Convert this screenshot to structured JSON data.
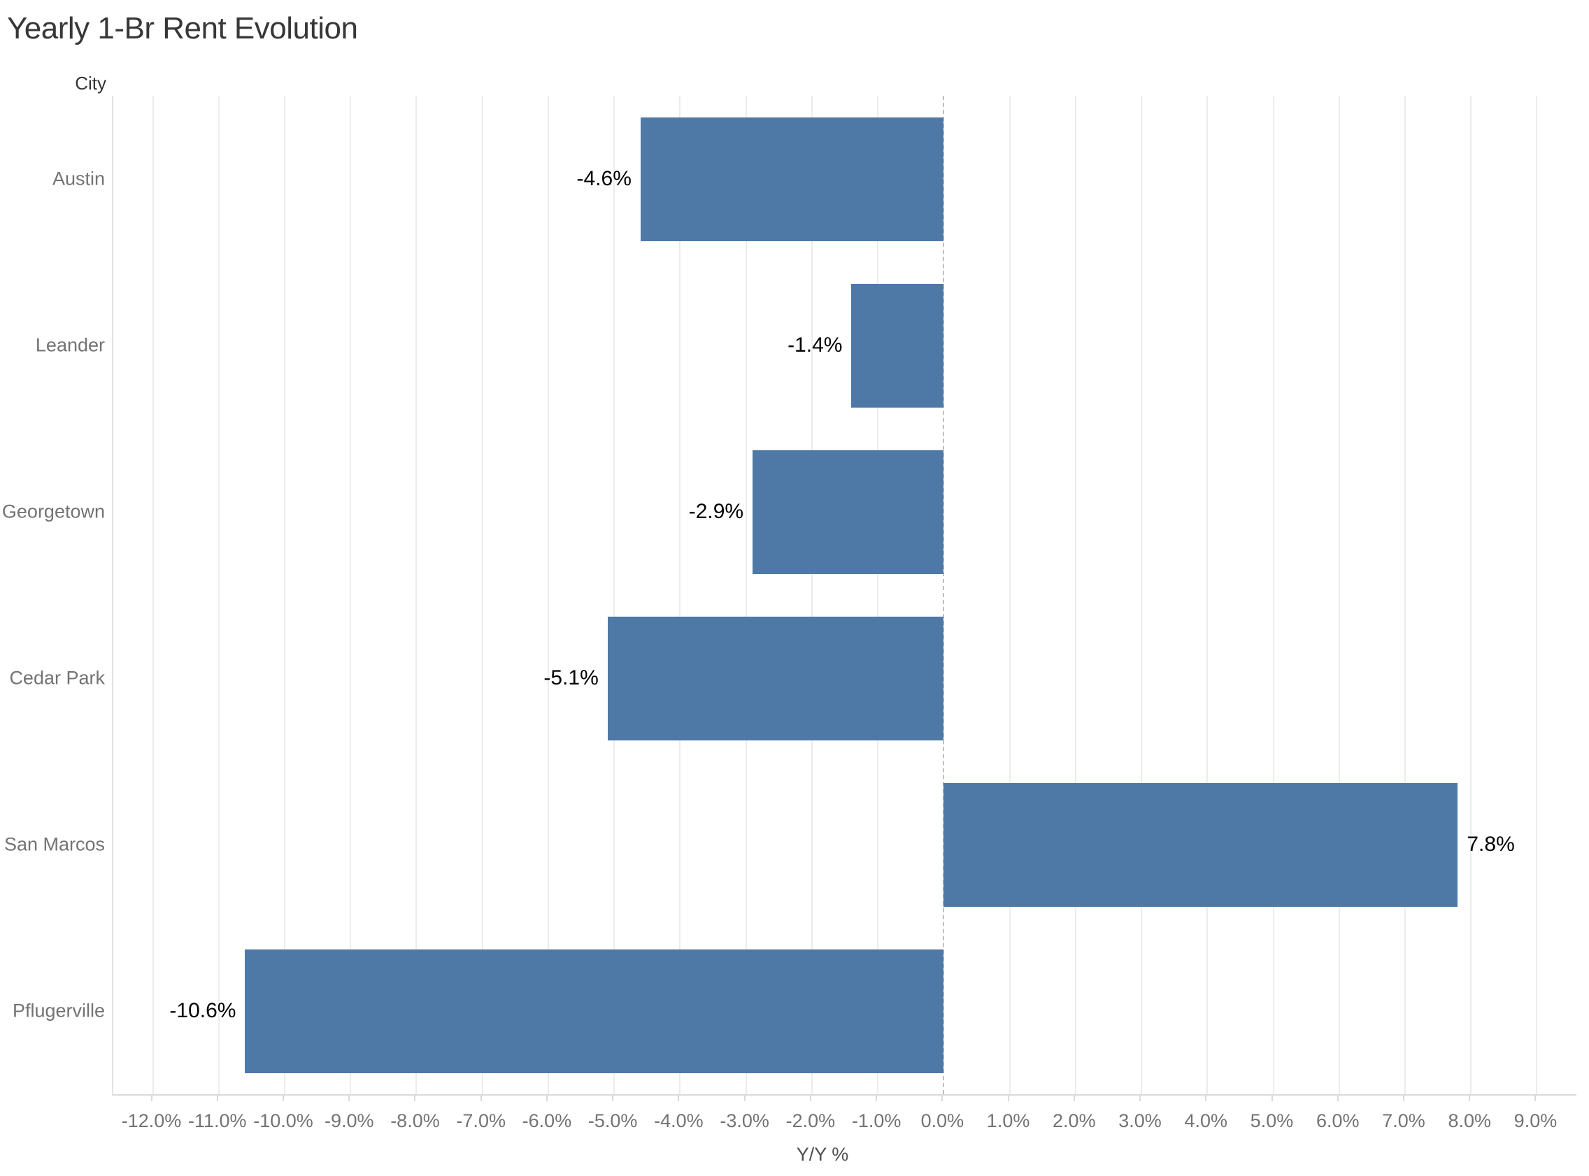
{
  "page": {
    "background": "#ffffff"
  },
  "chart_data": {
    "type": "bar",
    "orientation": "horizontal",
    "title": "Yearly 1-Br Rent Evolution",
    "row_field_label": "City",
    "xlabel": "Y/Y %",
    "categories": [
      "Austin",
      "Leander",
      "Georgetown",
      "Cedar Park",
      "San Marcos",
      "Pflugerville"
    ],
    "values": [
      -4.6,
      -1.4,
      -2.9,
      -5.1,
      7.8,
      -10.6
    ],
    "bar_labels": [
      "-4.6%",
      "-1.4%",
      "-2.9%",
      "-5.1%",
      "7.8%",
      "-10.6%"
    ],
    "bar_color": "#4e79a7",
    "xlim": [
      -12.6,
      9.6
    ],
    "x_tick_values": [
      -12,
      -11,
      -10,
      -9,
      -8,
      -7,
      -6,
      -5,
      -4,
      -3,
      -2,
      -1,
      0,
      1,
      2,
      3,
      4,
      5,
      6,
      7,
      8,
      9
    ],
    "x_tick_labels": [
      "-12.0%",
      "-11.0%",
      "-10.0%",
      "-9.0%",
      "-8.0%",
      "-7.0%",
      "-6.0%",
      "-5.0%",
      "-4.0%",
      "-3.0%",
      "-2.0%",
      "-1.0%",
      "0.0%",
      "1.0%",
      "2.0%",
      "3.0%",
      "4.0%",
      "5.0%",
      "6.0%",
      "7.0%",
      "8.0%",
      "9.0%"
    ],
    "grid": true,
    "zero_line_style": "dashed",
    "legend": "none"
  }
}
